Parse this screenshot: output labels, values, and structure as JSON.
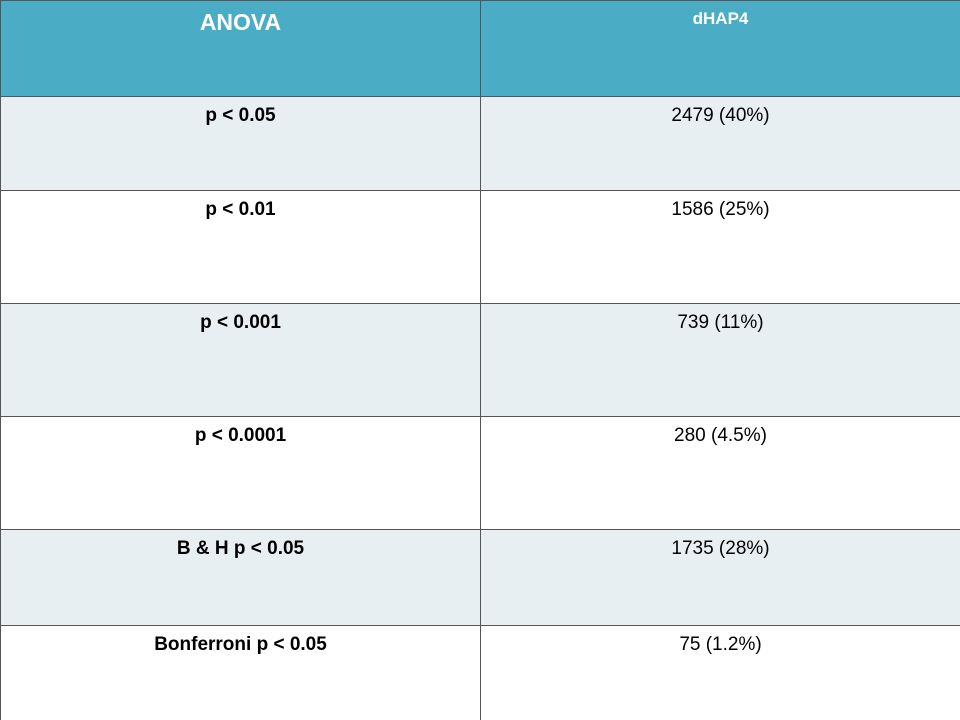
{
  "table": {
    "header": [
      "ANOVA",
      "dHAP4"
    ],
    "rows": [
      [
        "p < 0.05",
        "2479 (40%)"
      ],
      [
        "p < 0.01",
        "1586 (25%)"
      ],
      [
        "p < 0.001",
        "739 (11%)"
      ],
      [
        "p < 0.0001",
        "280 (4.5%)"
      ],
      [
        "B & H p < 0.05",
        "1735 (28%)"
      ],
      [
        "Bonferroni p < 0.05",
        "75 (1.2%)"
      ]
    ]
  }
}
